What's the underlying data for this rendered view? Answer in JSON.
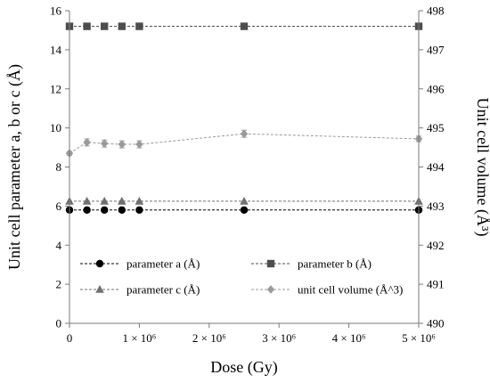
{
  "chart_data": {
    "type": "line",
    "title": "",
    "xlabel": "Dose (Gy)",
    "ylabel_left": "Unit cell parameter a, b or c (Å)",
    "ylabel_right": "Unit cell volume (Å³)",
    "xlim": [
      0,
      5000000
    ],
    "ylim_left": [
      0,
      16
    ],
    "ylim_right": [
      490,
      498
    ],
    "x_ticks": [
      0,
      1000000,
      2000000,
      3000000,
      4000000,
      5000000
    ],
    "x_tick_labels": [
      "0",
      "1 × 10⁶",
      "2 × 10⁶",
      "3 × 10⁶",
      "4 × 10⁶",
      "5 × 10⁶"
    ],
    "y_left_ticks": [
      0,
      2,
      4,
      6,
      8,
      10,
      12,
      14,
      16
    ],
    "y_right_ticks": [
      490,
      491,
      492,
      493,
      494,
      495,
      496,
      497,
      498
    ],
    "grid": false,
    "legend_position": "bottom",
    "series": [
      {
        "name": "parameter a (Å)",
        "axis": "left",
        "marker": "circle",
        "color": "#000000",
        "x": [
          0,
          250000,
          500000,
          750000,
          1000000,
          2500000,
          5000000
        ],
        "y": [
          5.8,
          5.8,
          5.8,
          5.8,
          5.8,
          5.8,
          5.8
        ]
      },
      {
        "name": "parameter b (Å)",
        "axis": "left",
        "marker": "square",
        "color": "#4d4d4d",
        "x": [
          0,
          250000,
          500000,
          750000,
          1000000,
          2500000,
          5000000
        ],
        "y": [
          15.2,
          15.2,
          15.2,
          15.2,
          15.2,
          15.2,
          15.2
        ]
      },
      {
        "name": "parameter c (Å)",
        "axis": "left",
        "marker": "triangle",
        "color": "#707070",
        "x": [
          0,
          250000,
          500000,
          750000,
          1000000,
          2500000,
          5000000
        ],
        "y": [
          6.25,
          6.25,
          6.25,
          6.25,
          6.25,
          6.25,
          6.25
        ]
      },
      {
        "name": "unit cell volume (Å^3)",
        "axis": "right",
        "marker": "diamond",
        "color": "#9a9a9a",
        "x": [
          0,
          250000,
          500000,
          750000,
          1000000,
          2500000,
          5000000
        ],
        "y": [
          494.35,
          494.63,
          494.6,
          494.58,
          494.58,
          494.85,
          494.72
        ],
        "error": [
          0.05,
          0.09,
          0.09,
          0.09,
          0.09,
          0.09,
          0.07
        ]
      }
    ]
  }
}
